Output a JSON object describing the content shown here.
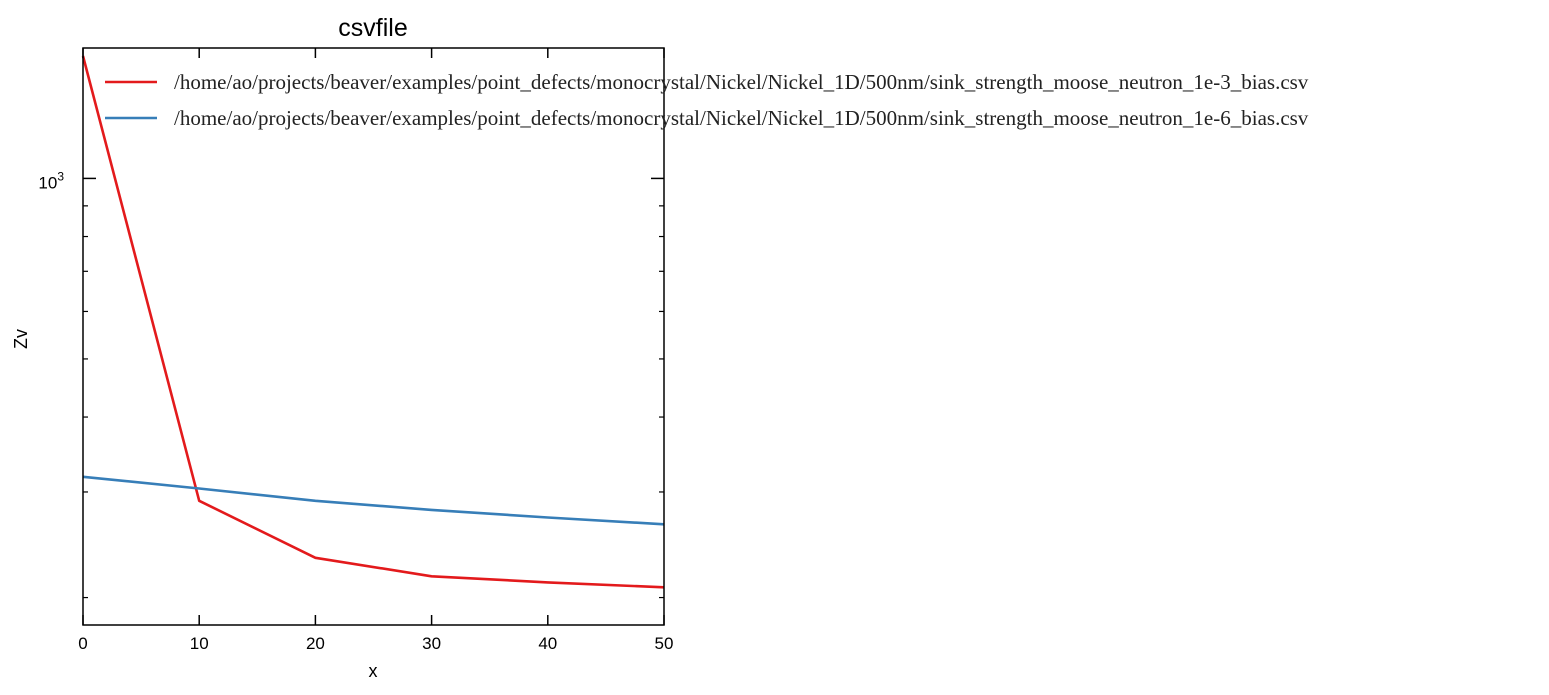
{
  "chart_data": {
    "type": "line",
    "title": "csvfile",
    "xlabel": "x",
    "ylabel": "Zv",
    "xlim": [
      0,
      50
    ],
    "ylim": [
      180,
      1650
    ],
    "yscale": "log",
    "x_ticks": [
      0,
      10,
      20,
      30,
      40,
      50
    ],
    "x_tick_labels": [
      "0",
      "10",
      "20",
      "30",
      "40",
      "50"
    ],
    "y_major_tick": {
      "base": "10",
      "exponent": "3",
      "value": 1000
    },
    "y_minor_ticks": [
      200,
      300,
      400,
      500,
      600,
      700,
      800,
      900
    ],
    "grid": false,
    "legend_position": "top-right (extends outside axes)",
    "series": [
      {
        "name": "/home/ao/projects/beaver/examples/point_defects/monocrystal/Nickel/Nickel_1D/500nm/sink_strength_moose_neutron_1e-3_bias.csv",
        "color": "#e31a1c",
        "x": [
          0,
          10,
          20,
          30,
          40,
          50
        ],
        "y": [
          1600,
          290,
          233,
          217,
          212,
          208
        ]
      },
      {
        "name": "/home/ao/projects/beaver/examples/point_defects/monocrystal/Nickel/Nickel_1D/500nm/sink_strength_moose_neutron_1e-6_bias.csv",
        "color": "#377eb8",
        "x": [
          0,
          10,
          20,
          30,
          40,
          50
        ],
        "y": [
          318,
          304,
          290,
          280,
          272,
          265
        ]
      }
    ]
  }
}
